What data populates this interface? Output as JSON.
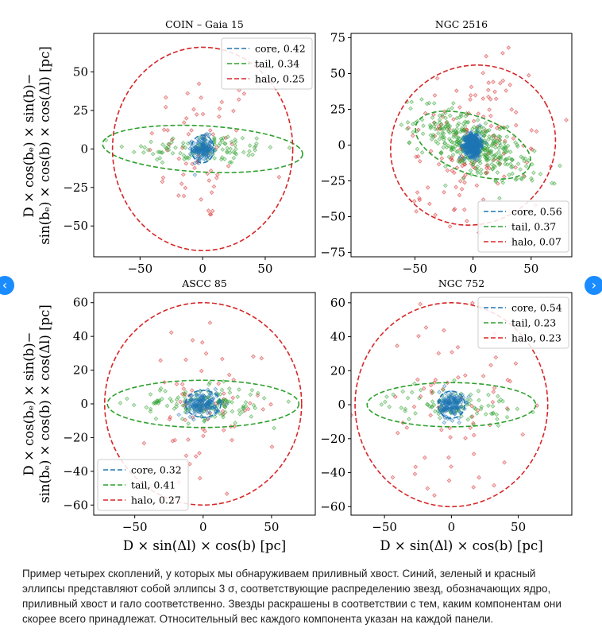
{
  "chart_data": [
    {
      "type": "scatter",
      "title": "COIN – Gaia 15",
      "xlim": [
        -87,
        90
      ],
      "ylim": [
        -70,
        75
      ],
      "xticks": [
        -50,
        0,
        50
      ],
      "yticks": [
        -50,
        -25,
        0,
        25,
        50
      ],
      "legend_position": "top-right",
      "legend": [
        {
          "label": "core, 0.42",
          "color": "#1f77b4"
        },
        {
          "label": "tail, 0.34",
          "color": "#2ca02c"
        },
        {
          "label": "halo, 0.25",
          "color": "#d62728"
        }
      ],
      "ellipses": [
        {
          "component": "core",
          "center": [
            0,
            0
          ],
          "rx": 9,
          "ry": 9,
          "angle": 0
        },
        {
          "component": "tail",
          "center": [
            0,
            0
          ],
          "rx": 80,
          "ry": 15,
          "angle": -3
        },
        {
          "component": "halo",
          "center": [
            0,
            0
          ],
          "rx": 72,
          "ry": 66,
          "angle": 0
        }
      ],
      "points": {
        "core_n": 140,
        "core_sigma": [
          4,
          4
        ],
        "tail_n": 110,
        "tail_sigma": [
          30,
          5
        ],
        "halo_n": 65,
        "halo_sigma": [
          22,
          25
        ]
      }
    },
    {
      "type": "scatter",
      "title": "NGC 2516",
      "xlim": [
        -105,
        85
      ],
      "ylim": [
        -78,
        78
      ],
      "xticks": [
        -50,
        0,
        50
      ],
      "yticks": [
        -75,
        -50,
        -25,
        0,
        25,
        50,
        75
      ],
      "legend_position": "bottom-right",
      "legend": [
        {
          "label": "core, 0.56",
          "color": "#1f77b4"
        },
        {
          "label": "tail, 0.37",
          "color": "#2ca02c"
        },
        {
          "label": "halo, 0.07",
          "color": "#d62728"
        }
      ],
      "ellipses": [
        {
          "component": "core",
          "center": [
            0,
            0
          ],
          "rx": 8,
          "ry": 8,
          "angle": 0
        },
        {
          "component": "tail",
          "center": [
            0,
            0
          ],
          "rx": 52,
          "ry": 20,
          "angle": -20
        },
        {
          "component": "halo",
          "center": [
            0,
            0
          ],
          "rx": 72,
          "ry": 55,
          "angle": 30
        }
      ],
      "points": {
        "core_n": 450,
        "core_sigma": [
          3.5,
          4
        ],
        "tail_n": 380,
        "tail_sigma": [
          25,
          9
        ],
        "halo_n": 150,
        "halo_sigma": [
          28,
          22
        ]
      }
    },
    {
      "type": "scatter",
      "title": "ASCC 85",
      "xlim": [
        -80,
        82
      ],
      "ylim": [
        -66,
        66
      ],
      "xticks": [
        -50,
        0,
        50
      ],
      "yticks": [
        -60,
        -40,
        -20,
        0,
        20,
        40,
        60
      ],
      "legend_position": "bottom-left",
      "legend": [
        {
          "label": "core, 0.32",
          "color": "#1f77b4"
        },
        {
          "label": "tail, 0.41",
          "color": "#2ca02c"
        },
        {
          "label": "halo, 0.27",
          "color": "#d62728"
        }
      ],
      "ellipses": [
        {
          "component": "core",
          "center": [
            0,
            0
          ],
          "rx": 13,
          "ry": 8,
          "angle": 0
        },
        {
          "component": "tail",
          "center": [
            0,
            0
          ],
          "rx": 70,
          "ry": 14,
          "angle": 0
        },
        {
          "component": "halo",
          "center": [
            0,
            0
          ],
          "rx": 72,
          "ry": 60,
          "angle": 0
        }
      ],
      "points": {
        "core_n": 150,
        "core_sigma": [
          6,
          3.5
        ],
        "tail_n": 130,
        "tail_sigma": [
          25,
          5
        ],
        "halo_n": 70,
        "halo_sigma": [
          22,
          20
        ]
      }
    },
    {
      "type": "scatter",
      "title": "NGC 752",
      "xlim": [
        -75,
        90
      ],
      "ylim": [
        -65,
        66
      ],
      "xticks": [
        -50,
        0,
        50
      ],
      "yticks": [
        -60,
        -40,
        -20,
        0,
        20,
        40,
        60
      ],
      "legend_position": "top-right",
      "legend": [
        {
          "label": "core, 0.54",
          "color": "#1f77b4"
        },
        {
          "label": "tail, 0.23",
          "color": "#2ca02c"
        },
        {
          "label": "halo, 0.23",
          "color": "#d62728"
        }
      ],
      "ellipses": [
        {
          "component": "core",
          "center": [
            0,
            0
          ],
          "rx": 10,
          "ry": 8,
          "angle": 0
        },
        {
          "component": "tail",
          "center": [
            0,
            0
          ],
          "rx": 63,
          "ry": 13,
          "angle": 0
        },
        {
          "component": "halo",
          "center": [
            0,
            0
          ],
          "rx": 72,
          "ry": 60,
          "angle": 0
        }
      ],
      "points": {
        "core_n": 150,
        "core_sigma": [
          4.5,
          4
        ],
        "tail_n": 90,
        "tail_sigma": [
          24,
          5
        ],
        "halo_n": 70,
        "halo_sigma": [
          25,
          25
        ]
      }
    }
  ],
  "axes": {
    "xlabel": "D × sin(Δl) × cos(b) [pc]",
    "ylabel_line1": "D × cos(bₑ) × sin(b)−",
    "ylabel_line2": "sin(bₑ) × cos(b) × cos(Δl) [pc]"
  },
  "colors": {
    "core": "#1f77b4",
    "tail": "#2ca02c",
    "halo": "#d62728"
  },
  "nav": {
    "left_icon": "chevron-left-icon",
    "right_icon": "chevron-right-icon",
    "left_glyph": "‹",
    "right_glyph": "›"
  },
  "caption": "Пример четырех скоплений, у которых мы обнаруживаем приливный хвост. Синий, зеленый и красный эллипсы представляют собой эллипсы 3 σ, соответствующие распределению звезд, обозначающих ядро, приливный хвост и гало соответственно. Звезды раскрашены в соответствии с тем, каким компонентам они скорее всего принадлежат. Относительный вес каждого компонента указан на каждой панели."
}
